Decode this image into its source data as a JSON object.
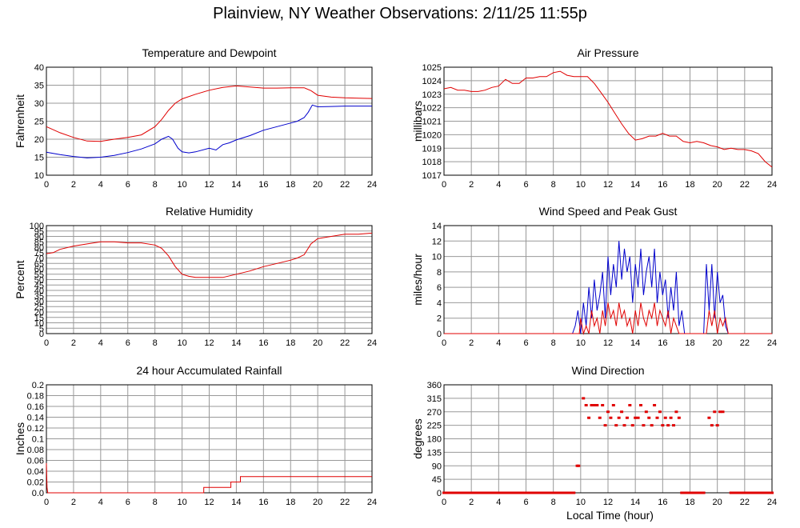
{
  "page": {
    "title": "Plainview, NY Weather Observations: 2/11/25 11:55p",
    "xlabel": "Local Time (hour)"
  },
  "colors": {
    "series_red": "#e00000",
    "series_blue": "#0000cc",
    "grid": "#999999",
    "axis": "#000000"
  },
  "chart_data": [
    {
      "type": "line",
      "title": "Temperature and Dewpoint",
      "ylabel": "Fahrenheit",
      "xlabel": "",
      "xlim": [
        0,
        24
      ],
      "ylim": [
        10,
        40
      ],
      "xticks": [
        0,
        2,
        4,
        6,
        8,
        10,
        12,
        14,
        16,
        18,
        20,
        22,
        24
      ],
      "yticks": [
        10,
        15,
        20,
        25,
        30,
        35,
        40
      ],
      "series": [
        {
          "color": "#e00000",
          "x": [
            0,
            1,
            2,
            3,
            4,
            5,
            6,
            7,
            8,
            8.5,
            9,
            9.5,
            10,
            11,
            12,
            13,
            14,
            15,
            16,
            17,
            18,
            19,
            19.5,
            20,
            21,
            22,
            23,
            24
          ],
          "y": [
            23.5,
            21.8,
            20.5,
            19.5,
            19.4,
            20.0,
            20.5,
            21.2,
            23.5,
            25.5,
            28.0,
            30.0,
            31.2,
            32.5,
            33.6,
            34.4,
            34.8,
            34.5,
            34.2,
            34.2,
            34.3,
            34.3,
            33.5,
            32.2,
            31.7,
            31.5,
            31.4,
            31.3
          ]
        },
        {
          "color": "#0000cc",
          "x": [
            0,
            1,
            2,
            3,
            4,
            5,
            6,
            7,
            8,
            8.5,
            9,
            9.3,
            9.7,
            10,
            10.5,
            11,
            12,
            12.5,
            13,
            13.5,
            14,
            15,
            16,
            17,
            18,
            18.5,
            19,
            19.3,
            19.6,
            20,
            21,
            22,
            23,
            24
          ],
          "y": [
            16.4,
            15.7,
            15.2,
            14.8,
            15.0,
            15.5,
            16.3,
            17.3,
            18.7,
            20.0,
            20.8,
            20.0,
            17.5,
            16.5,
            16.2,
            16.5,
            17.5,
            17.0,
            18.5,
            19.0,
            19.8,
            21.0,
            22.5,
            23.5,
            24.5,
            25.0,
            26.0,
            27.5,
            29.5,
            29.0,
            29.1,
            29.2,
            29.2,
            29.2
          ]
        }
      ]
    },
    {
      "type": "line",
      "title": "Air Pressure",
      "ylabel": "millibars",
      "xlabel": "",
      "xlim": [
        0,
        24
      ],
      "ylim": [
        1017,
        1025
      ],
      "xticks": [
        0,
        2,
        4,
        6,
        8,
        10,
        12,
        14,
        16,
        18,
        20,
        22,
        24
      ],
      "yticks": [
        1017,
        1018,
        1019,
        1020,
        1021,
        1022,
        1023,
        1024,
        1025
      ],
      "series": [
        {
          "color": "#e00000",
          "x": [
            0,
            0.5,
            1,
            1.5,
            2,
            2.5,
            3,
            3.5,
            4,
            4.5,
            5,
            5.5,
            6,
            6.5,
            7,
            7.5,
            8,
            8.5,
            9,
            9.5,
            10,
            10.5,
            11,
            11.5,
            12,
            12.5,
            13,
            13.5,
            14,
            14.5,
            15,
            15.5,
            16,
            16.5,
            17,
            17.5,
            18,
            18.5,
            19,
            19.5,
            20,
            20.5,
            21,
            21.5,
            22,
            22.5,
            23,
            23.5,
            24
          ],
          "y": [
            1023.4,
            1023.5,
            1023.3,
            1023.3,
            1023.2,
            1023.2,
            1023.3,
            1023.5,
            1023.6,
            1024.1,
            1023.8,
            1023.8,
            1024.2,
            1024.2,
            1024.3,
            1024.3,
            1024.6,
            1024.7,
            1024.4,
            1024.3,
            1024.3,
            1024.3,
            1023.8,
            1023.1,
            1022.4,
            1021.6,
            1020.8,
            1020.1,
            1019.6,
            1019.7,
            1019.9,
            1019.9,
            1020.1,
            1019.9,
            1019.9,
            1019.5,
            1019.4,
            1019.5,
            1019.4,
            1019.2,
            1019.1,
            1018.9,
            1019.0,
            1018.9,
            1018.9,
            1018.8,
            1018.6,
            1018.0,
            1017.6
          ]
        }
      ]
    },
    {
      "type": "line",
      "title": "Relative Humidity",
      "ylabel": "Percent",
      "xlabel": "",
      "xlim": [
        0,
        24
      ],
      "ylim": [
        0,
        100
      ],
      "xticks": [
        0,
        2,
        4,
        6,
        8,
        10,
        12,
        14,
        16,
        18,
        20,
        22,
        24
      ],
      "yticks": [
        0,
        5,
        10,
        15,
        20,
        25,
        30,
        35,
        40,
        45,
        50,
        55,
        60,
        65,
        70,
        75,
        80,
        85,
        90,
        95,
        100
      ],
      "series": [
        {
          "color": "#e00000",
          "x": [
            0,
            0.5,
            1,
            2,
            3,
            4,
            5,
            6,
            7,
            8,
            8.5,
            9,
            9.5,
            10,
            10.5,
            11,
            12,
            12.5,
            13,
            14,
            15,
            16,
            17,
            18,
            18.5,
            19,
            19.5,
            20,
            21,
            22,
            23,
            24
          ],
          "y": [
            74,
            75,
            78,
            81,
            83,
            85,
            85,
            84,
            84,
            82,
            79,
            72,
            62,
            55,
            53,
            52,
            52,
            52,
            52,
            55,
            58,
            62,
            65,
            68,
            70,
            73,
            83,
            88,
            90,
            92,
            92,
            93
          ]
        }
      ]
    },
    {
      "type": "line",
      "title": "Wind Speed and Peak Gust",
      "ylabel": "miles/hour",
      "xlabel": "",
      "xlim": [
        0,
        24
      ],
      "ylim": [
        0,
        14
      ],
      "xticks": [
        0,
        2,
        4,
        6,
        8,
        10,
        12,
        14,
        16,
        18,
        20,
        22,
        24
      ],
      "yticks": [
        0,
        2,
        4,
        6,
        8,
        10,
        12,
        14
      ],
      "series": [
        {
          "color": "#0000cc",
          "x": [
            0,
            9.4,
            9.6,
            9.8,
            10,
            10.2,
            10.4,
            10.6,
            10.8,
            11,
            11.2,
            11.4,
            11.6,
            11.8,
            12,
            12.2,
            12.4,
            12.6,
            12.8,
            13,
            13.2,
            13.4,
            13.6,
            13.8,
            14,
            14.2,
            14.4,
            14.6,
            14.8,
            15,
            15.2,
            15.4,
            15.6,
            15.8,
            16,
            16.2,
            16.4,
            16.6,
            16.8,
            17,
            17.2,
            17.4,
            17.6,
            19,
            19.2,
            19.4,
            19.6,
            19.8,
            20,
            20.2,
            20.4,
            20.6,
            20.8,
            21,
            24
          ],
          "y": [
            0,
            0,
            1,
            3,
            0,
            4,
            1,
            6,
            2,
            7,
            3,
            5,
            8,
            2,
            10,
            5,
            9,
            6,
            12,
            7,
            11,
            8,
            10,
            4,
            9,
            6,
            11,
            5,
            8,
            10,
            6,
            11,
            4,
            8,
            5,
            7,
            2,
            6,
            3,
            8,
            1,
            3,
            0,
            0,
            9,
            3,
            9,
            2,
            8,
            4,
            5,
            1,
            0,
            0,
            0
          ]
        },
        {
          "color": "#e00000",
          "x": [
            0,
            9.9,
            10,
            10.2,
            10.4,
            10.6,
            10.8,
            11,
            11.2,
            11.4,
            11.6,
            11.8,
            12,
            12.2,
            12.4,
            12.6,
            12.8,
            13,
            13.2,
            13.4,
            13.6,
            13.8,
            14,
            14.2,
            14.4,
            14.6,
            14.8,
            15,
            15.2,
            15.4,
            15.6,
            15.8,
            16,
            16.2,
            16.4,
            16.6,
            16.8,
            17,
            17.2,
            19.2,
            19.4,
            19.6,
            19.8,
            20,
            20.2,
            20.4,
            20.6,
            20.8,
            24
          ],
          "y": [
            0,
            0,
            2,
            0,
            1,
            0,
            3,
            1,
            2,
            0,
            3,
            1,
            4,
            2,
            3,
            1,
            4,
            2,
            3,
            1,
            2,
            0,
            3,
            1,
            4,
            2,
            1,
            3,
            2,
            4,
            1,
            3,
            2,
            1,
            3,
            0,
            2,
            1,
            0,
            0,
            3,
            1,
            3,
            0,
            2,
            1,
            2,
            0,
            0
          ]
        }
      ]
    },
    {
      "type": "line",
      "title": "24 hour Accumulated Rainfall",
      "ylabel": "Inches",
      "xlabel": "",
      "xlim": [
        0,
        24
      ],
      "ylim": [
        0,
        0.2
      ],
      "xticks": [
        0,
        2,
        4,
        6,
        8,
        10,
        12,
        14,
        16,
        18,
        20,
        22,
        24
      ],
      "yticks": [
        "0.0",
        "0.02",
        "0.04",
        "0.06",
        "0.08",
        "0.1",
        "0.12",
        "0.14",
        "0.16",
        "0.18",
        "0.2"
      ],
      "series": [
        {
          "color": "#e00000",
          "x": [
            0,
            0.05,
            0.1,
            11.6,
            11.6,
            13.6,
            13.6,
            14.3,
            14.3,
            24
          ],
          "y": [
            0.055,
            0.01,
            0,
            0,
            0.01,
            0.01,
            0.02,
            0.02,
            0.03,
            0.03
          ]
        }
      ]
    },
    {
      "type": "scatter",
      "title": "Wind Direction",
      "ylabel": "degrees",
      "xlabel": "",
      "xlim": [
        0,
        24
      ],
      "ylim": [
        0,
        360
      ],
      "xticks": [
        0,
        2,
        4,
        6,
        8,
        10,
        12,
        14,
        16,
        18,
        20,
        22,
        24
      ],
      "yticks": [
        0,
        45,
        90,
        135,
        180,
        225,
        270,
        315,
        360
      ],
      "series": [
        {
          "color": "#e00000",
          "x": [
            0,
            1,
            2,
            3,
            4,
            5,
            6,
            7,
            8,
            9,
            9.5,
            9.75,
            9.85,
            10.2,
            10.4,
            10.6,
            10.8,
            11,
            11.2,
            11.4,
            11.6,
            11.8,
            12,
            12.2,
            12.4,
            12.6,
            12.8,
            13,
            13.2,
            13.4,
            13.6,
            13.8,
            14,
            14.2,
            14.4,
            14.6,
            14.8,
            15,
            15.2,
            15.4,
            15.6,
            15.8,
            16,
            16.2,
            16.4,
            16.6,
            16.8,
            17,
            17.2,
            17.4,
            18,
            19,
            19.4,
            19.6,
            19.8,
            20,
            20.2,
            20.4,
            21,
            22,
            23,
            24
          ],
          "y": [
            0,
            0,
            0,
            0,
            0,
            0,
            0,
            0,
            0,
            0,
            0,
            90,
            90,
            315,
            292,
            250,
            292,
            292,
            292,
            250,
            292,
            225,
            270,
            250,
            292,
            225,
            250,
            270,
            225,
            250,
            292,
            225,
            250,
            250,
            292,
            225,
            270,
            250,
            225,
            292,
            250,
            270,
            225,
            250,
            225,
            250,
            225,
            270,
            250,
            0,
            0,
            0,
            250,
            225,
            270,
            225,
            270,
            270,
            0,
            0,
            0,
            0
          ]
        }
      ]
    }
  ]
}
